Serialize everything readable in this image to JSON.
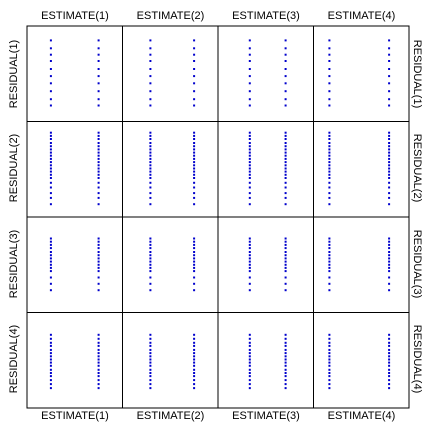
{
  "chart_data": {
    "type": "scatter",
    "layout": "scatterplot-matrix",
    "grid": false,
    "marker_color": "#0000cc",
    "column_labels": [
      "ESTIMATE(1)",
      "ESTIMATE(2)",
      "ESTIMATE(3)",
      "ESTIMATE(4)"
    ],
    "row_labels": [
      "RESIDUAL(1)",
      "RESIDUAL(2)",
      "RESIDUAL(3)",
      "RESIDUAL(4)"
    ],
    "estimate_values": [
      [
        0.2,
        0.8
      ],
      [
        0.25,
        0.8
      ],
      [
        0.3,
        0.75
      ],
      [
        0.1,
        0.85
      ]
    ],
    "residual_values": [
      [
        0.92,
        0.82,
        0.74,
        0.66,
        0.56,
        0.47,
        0.38,
        0.28,
        0.18,
        0.1
      ],
      [
        0.96,
        0.92,
        0.88,
        0.83,
        0.79,
        0.75,
        0.71,
        0.67,
        0.63,
        0.59,
        0.55,
        0.51,
        0.47,
        0.43,
        0.39,
        0.33,
        0.27,
        0.2,
        0.14,
        0.06
      ],
      [
        0.83,
        0.79,
        0.75,
        0.71,
        0.66,
        0.62,
        0.58,
        0.54,
        0.5,
        0.46,
        0.42,
        0.34,
        0.26,
        0.18
      ],
      [
        0.82,
        0.77,
        0.72,
        0.68,
        0.63,
        0.59,
        0.55,
        0.51,
        0.47,
        0.43,
        0.38,
        0.34,
        0.3,
        0.25,
        0.2,
        0.15
      ]
    ]
  }
}
